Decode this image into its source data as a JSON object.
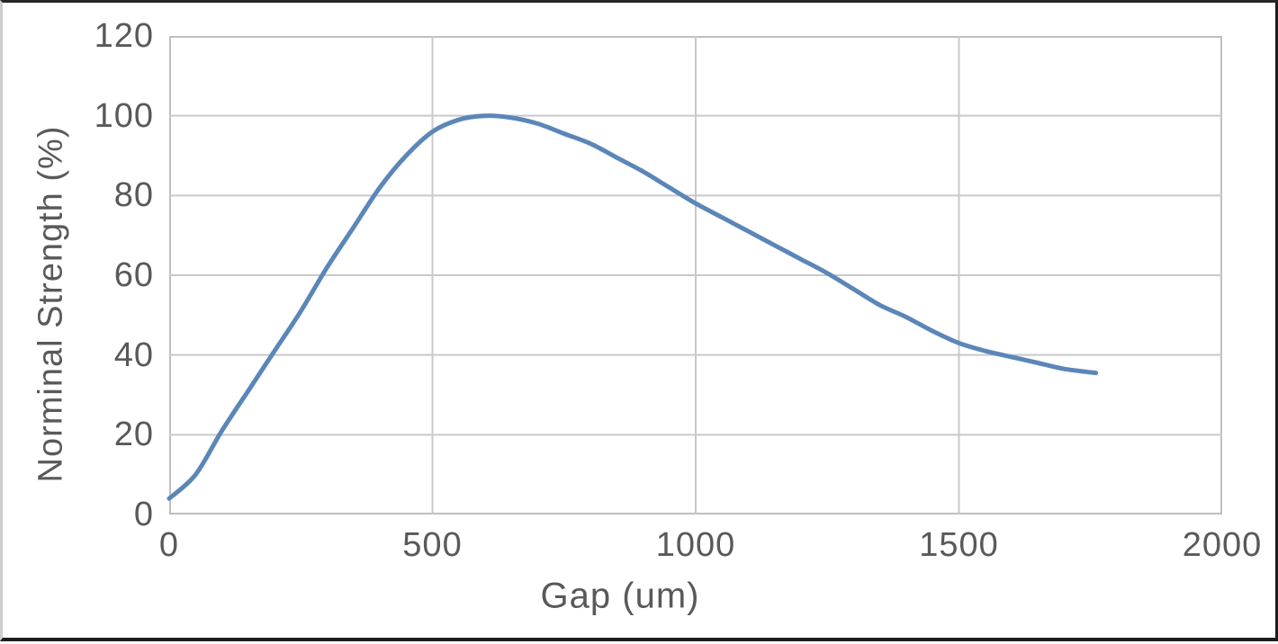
{
  "chart_data": {
    "type": "line",
    "title": "",
    "xlabel": "Gap (um)",
    "ylabel": "Norminal Strength (%)",
    "xlim": [
      0,
      2000
    ],
    "ylim": [
      0,
      120
    ],
    "x_ticks": [
      0,
      500,
      1000,
      1500,
      2000
    ],
    "y_ticks": [
      0,
      20,
      40,
      60,
      80,
      100,
      120
    ],
    "grid": true,
    "legend": "none",
    "series": [
      {
        "name": "Norminal Strength",
        "x": [
          0,
          50,
          100,
          150,
          200,
          250,
          300,
          350,
          400,
          450,
          500,
          550,
          600,
          650,
          700,
          750,
          800,
          850,
          900,
          950,
          1000,
          1050,
          1100,
          1150,
          1200,
          1250,
          1300,
          1350,
          1400,
          1450,
          1500,
          1550,
          1600,
          1650,
          1700,
          1760
        ],
        "y": [
          4,
          10,
          21,
          31,
          41,
          51,
          62,
          72,
          82,
          90,
          96,
          99,
          100,
          99.5,
          98,
          95.5,
          93,
          89.5,
          86,
          82,
          78,
          74.5,
          71,
          67.5,
          64,
          60.5,
          56.5,
          52.5,
          49.5,
          46,
          43,
          41,
          39.5,
          38,
          36.5,
          35.5
        ]
      }
    ],
    "colors": {
      "line": "#5B86B8",
      "gridline": "#C9C9C9",
      "plot_border": "#BFBFBF",
      "text": "#595959",
      "background": "#FFFFFF",
      "frame": "#1F1F1F"
    }
  }
}
